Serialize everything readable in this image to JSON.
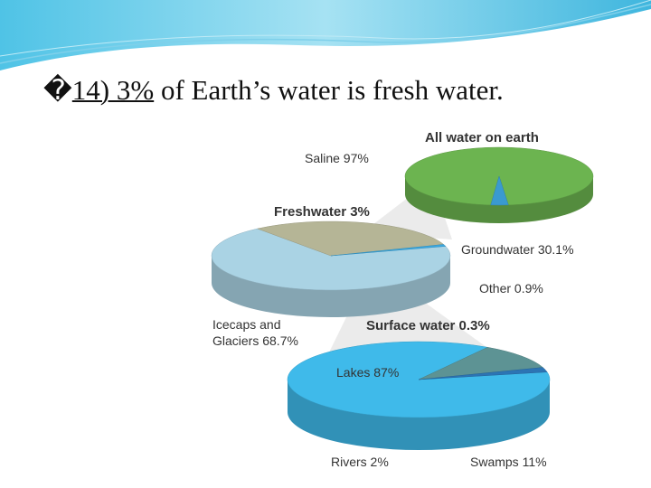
{
  "slide": {
    "bullet": "�",
    "title_underlined": "14) 3%",
    "title_rest": " of Earth’s water is fresh water."
  },
  "chart_data": [
    {
      "type": "pie",
      "title": "All water on earth",
      "categories": [
        "Saline 97%",
        null
      ],
      "values": [
        97,
        3
      ],
      "colors": [
        "#6cb450",
        "#3a9ad0"
      ]
    },
    {
      "type": "pie",
      "title": "Freshwater 3%",
      "categories": [
        "Icecaps and Glaciers 68.7%",
        "Groundwater 30.1%",
        "Other 0.9%"
      ],
      "values": [
        68.7,
        30.1,
        0.9
      ],
      "colors": [
        "#aad3e4",
        "#b5b596",
        "#3aa8e0"
      ]
    },
    {
      "type": "pie",
      "title": "Surface water 0.3%",
      "categories": [
        "Lakes 87%",
        "Swamps 11%",
        "Rivers 2%"
      ],
      "values": [
        87,
        11,
        2
      ],
      "colors": [
        "#3fbaea",
        "#5d9394",
        "#2c74b4"
      ]
    }
  ]
}
